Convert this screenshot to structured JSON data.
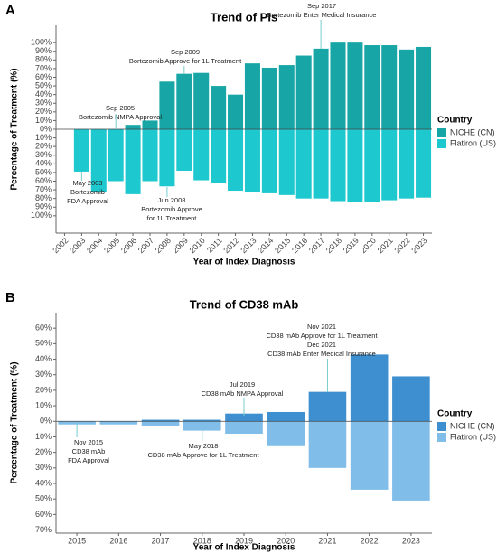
{
  "chart_data": [
    {
      "type": "bar",
      "panel": "A",
      "title": "Trend of PIs",
      "y_label": "Percentage of Treatment (%)",
      "x_label": "Year of Index Diagnosis",
      "legend_title": "Country",
      "categories": [
        "2002",
        "2003",
        "2004",
        "2005",
        "2006",
        "2007",
        "2008",
        "2009",
        "2010",
        "2011",
        "2012",
        "2013",
        "2014",
        "2015",
        "2016",
        "2017",
        "2018",
        "2019",
        "2020",
        "2021",
        "2022",
        "2023"
      ],
      "series": [
        {
          "name": "NICHE (CN)",
          "color": "#17a5a5",
          "values": [
            0,
            0,
            0,
            0,
            5,
            10,
            55,
            64,
            65,
            50,
            40,
            76,
            71,
            74,
            85,
            93,
            100,
            100,
            97,
            97,
            92,
            95
          ]
        },
        {
          "name": "Flatiron (US)",
          "color": "#1ec8cf",
          "values": [
            0,
            -49,
            -72,
            -60,
            -75,
            -60,
            -66,
            -48,
            -59,
            -62,
            -71,
            -73,
            -74,
            -76,
            -80,
            -80,
            -83,
            -84,
            -84,
            -82,
            -80,
            -79
          ]
        }
      ],
      "ylim": [
        -120,
        120
      ],
      "yticks": [
        {
          "value": 100,
          "label": "100%"
        },
        {
          "value": 90,
          "label": "90%"
        },
        {
          "value": 80,
          "label": "80%"
        },
        {
          "value": 70,
          "label": "70%"
        },
        {
          "value": 60,
          "label": "60%"
        },
        {
          "value": 50,
          "label": "50%"
        },
        {
          "value": 40,
          "label": "40%"
        },
        {
          "value": 30,
          "label": "30%"
        },
        {
          "value": 20,
          "label": "20%"
        },
        {
          "value": 10,
          "label": "10%"
        },
        {
          "value": 0,
          "label": "0%"
        },
        {
          "value": -10,
          "label": "10%"
        },
        {
          "value": -20,
          "label": "20%"
        },
        {
          "value": -30,
          "label": "30%"
        },
        {
          "value": -40,
          "label": "40%"
        },
        {
          "value": -50,
          "label": "50%"
        },
        {
          "value": -60,
          "label": "60%"
        },
        {
          "value": -70,
          "label": "70%"
        },
        {
          "value": -80,
          "label": "80%"
        },
        {
          "value": -90,
          "label": "90%"
        },
        {
          "value": -100,
          "label": "100%"
        }
      ],
      "annotations": [
        {
          "lines": [
            "May 2003",
            "Bortezomib",
            "FDA Approval"
          ]
        },
        {
          "lines": [
            "Sep 2005",
            "Bortezomib NMPA Approval"
          ]
        },
        {
          "lines": [
            "Jun 2008",
            "Bortezomib Approve",
            "for 1L Treatment"
          ]
        },
        {
          "lines": [
            "Sep 2009",
            "Bortezomib Approve for 1L Treatment"
          ]
        },
        {
          "lines": [
            "Sep 2017",
            "Bortezomib Enter Medical Insurance"
          ]
        }
      ]
    },
    {
      "type": "bar",
      "panel": "B",
      "title": "Trend of CD38 mAb",
      "y_label": "Percentage of Treatment (%)",
      "x_label": "Year of Index Diagnosis",
      "legend_title": "Country",
      "categories": [
        "2015",
        "2016",
        "2017",
        "2018",
        "2019",
        "2020",
        "2021",
        "2022",
        "2023"
      ],
      "series": [
        {
          "name": "NICHE (CN)",
          "color": "#3d8fd0",
          "values": [
            0,
            0,
            1,
            1,
            5,
            6,
            19,
            43,
            29
          ]
        },
        {
          "name": "Flatiron (US)",
          "color": "#80bde9",
          "values": [
            -2,
            -2,
            -3,
            -6,
            -8,
            -16,
            -30,
            -44,
            -51
          ]
        }
      ],
      "ylim": [
        -72,
        70
      ],
      "yticks": [
        {
          "value": 60,
          "label": "60%"
        },
        {
          "value": 50,
          "label": "50%"
        },
        {
          "value": 40,
          "label": "40%"
        },
        {
          "value": 30,
          "label": "30%"
        },
        {
          "value": 20,
          "label": "20%"
        },
        {
          "value": 10,
          "label": "10%"
        },
        {
          "value": 0,
          "label": "0%"
        },
        {
          "value": -10,
          "label": "10%"
        },
        {
          "value": -20,
          "label": "20%"
        },
        {
          "value": -30,
          "label": "30%"
        },
        {
          "value": -40,
          "label": "40%"
        },
        {
          "value": -50,
          "label": "50%"
        },
        {
          "value": -60,
          "label": "60%"
        },
        {
          "value": -70,
          "label": "70%"
        }
      ],
      "annotations": [
        {
          "lines": [
            "Nov 2015",
            "CD38 mAb",
            "FDA Approval"
          ]
        },
        {
          "lines": [
            "May 2018",
            "CD38 mAb Approve for 1L Treatment"
          ]
        },
        {
          "lines": [
            "Jul 2019",
            "CD38 mAb NMPA Approval"
          ]
        },
        {
          "lines": [
            "Nov 2021",
            "CD38 mAb Approve for 1L Treatment",
            "Dec 2021",
            "CD38 mAb Enter Medical Insurance"
          ]
        }
      ]
    }
  ]
}
